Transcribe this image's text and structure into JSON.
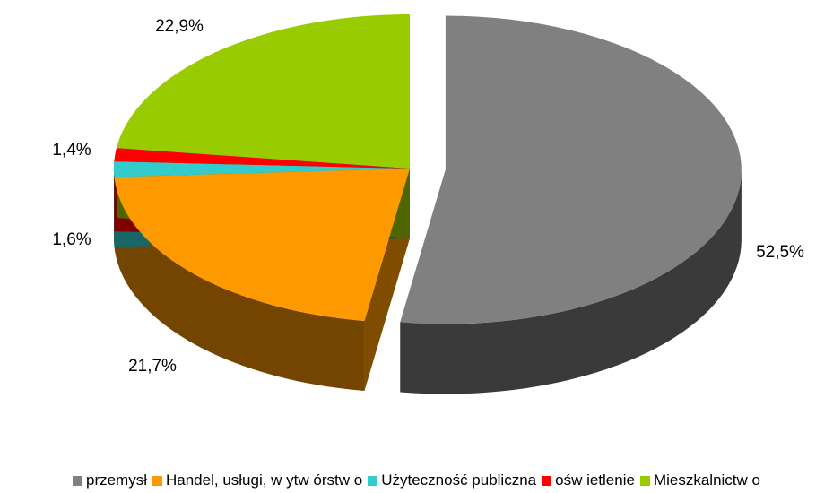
{
  "chart_data": {
    "type": "pie",
    "categories": [
      "przemysł",
      "Handel, usługi, w ytw órstw o",
      "Użyteczność publiczna",
      "ośw ietlenie",
      "Mieszkalnictw o"
    ],
    "values": [
      52.5,
      21.7,
      1.6,
      1.4,
      22.9
    ],
    "value_labels": [
      "52,5%",
      "21,7%",
      "1,6%",
      "1,4%",
      "22,9%"
    ],
    "colors": [
      "#808080",
      "#ff9900",
      "#33cccc",
      "#ff0000",
      "#99cc00"
    ],
    "legend": "bottom"
  }
}
